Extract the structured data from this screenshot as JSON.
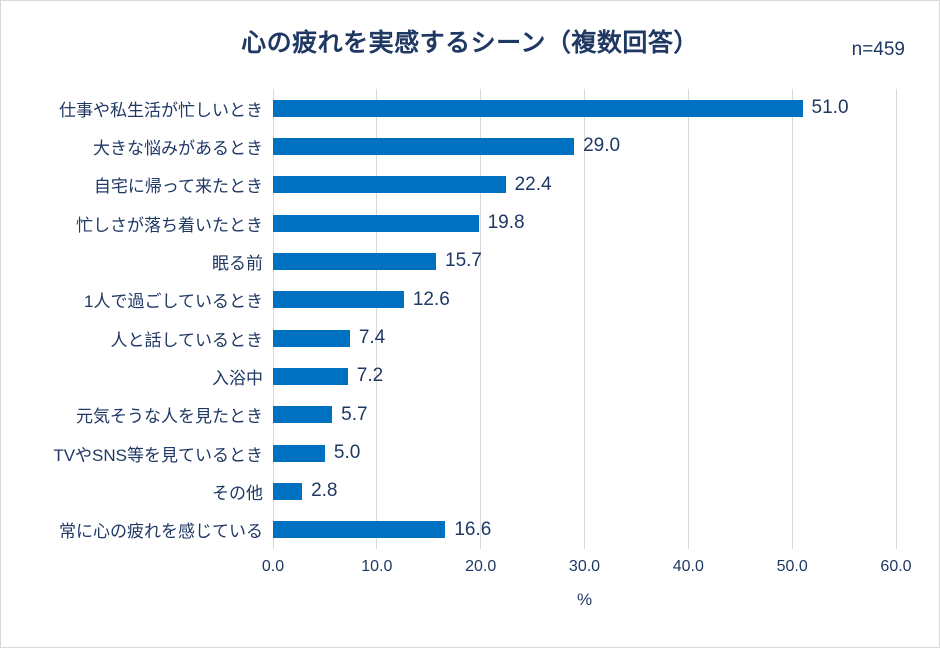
{
  "chart": {
    "title": "心の疲れを実感するシーン（複数回答）",
    "n_label": "n=459",
    "chart_data": {
      "type": "bar",
      "orientation": "horizontal",
      "categories": [
        "仕事や私生活が忙しいとき",
        "大きな悩みがあるとき",
        "自宅に帰って来たとき",
        "忙しさが落ち着いたとき",
        "眠る前",
        "1人で過ごしているとき",
        "人と話しているとき",
        "入浴中",
        "元気そうな人を見たとき",
        "TVやSNS等を見ているとき",
        "その他",
        "常に心の疲れを感じている"
      ],
      "values": [
        51.0,
        29.0,
        22.4,
        19.8,
        15.7,
        12.6,
        7.4,
        7.2,
        5.7,
        5.0,
        2.8,
        16.6
      ],
      "value_labels": [
        "51.0",
        "29.0",
        "22.4",
        "19.8",
        "15.7",
        "12.6",
        "7.4",
        "7.2",
        "5.7",
        "5.0",
        "2.8",
        "16.6"
      ],
      "xlabel": "%",
      "ylabel": "",
      "xlim": [
        0,
        60
      ],
      "xtick_labels": [
        "0.0",
        "10.0",
        "20.0",
        "30.0",
        "40.0",
        "50.0",
        "60.0"
      ],
      "grid": true,
      "legend": false,
      "bar_color": "#0070C0",
      "text_color": "#1F3864",
      "gridline_color": "#D9D9D9",
      "canvas_border_color": "#D9D9D9"
    }
  }
}
